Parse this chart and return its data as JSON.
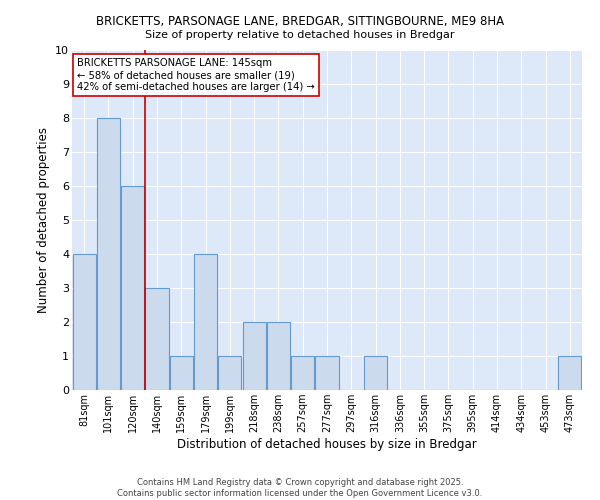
{
  "title": "BRICKETTS, PARSONAGE LANE, BREDGAR, SITTINGBOURNE, ME9 8HA",
  "subtitle": "Size of property relative to detached houses in Bredgar",
  "xlabel": "Distribution of detached houses by size in Bredgar",
  "ylabel": "Number of detached properties",
  "bar_color": "#ccdaee",
  "bar_edge_color": "#6699cc",
  "background_color": "#dde8f8",
  "categories": [
    "81sqm",
    "101sqm",
    "120sqm",
    "140sqm",
    "159sqm",
    "179sqm",
    "199sqm",
    "218sqm",
    "238sqm",
    "257sqm",
    "277sqm",
    "297sqm",
    "316sqm",
    "336sqm",
    "355sqm",
    "375sqm",
    "395sqm",
    "414sqm",
    "434sqm",
    "453sqm",
    "473sqm"
  ],
  "values": [
    4,
    8,
    6,
    3,
    1,
    4,
    1,
    2,
    2,
    1,
    1,
    0,
    1,
    0,
    0,
    0,
    0,
    0,
    0,
    0,
    1
  ],
  "vline_pos": 2.5,
  "vline_color": "#cc0000",
  "annotation_title": "BRICKETTS PARSONAGE LANE: 145sqm",
  "annotation_line1": "← 58% of detached houses are smaller (19)",
  "annotation_line2": "42% of semi-detached houses are larger (14) →",
  "annotation_box_color": "#ffffff",
  "annotation_box_edge": "#cc0000",
  "ylim": [
    0,
    10
  ],
  "yticks": [
    0,
    1,
    2,
    3,
    4,
    5,
    6,
    7,
    8,
    9,
    10
  ],
  "footer1": "Contains HM Land Registry data © Crown copyright and database right 2025.",
  "footer2": "Contains public sector information licensed under the Open Government Licence v3.0."
}
